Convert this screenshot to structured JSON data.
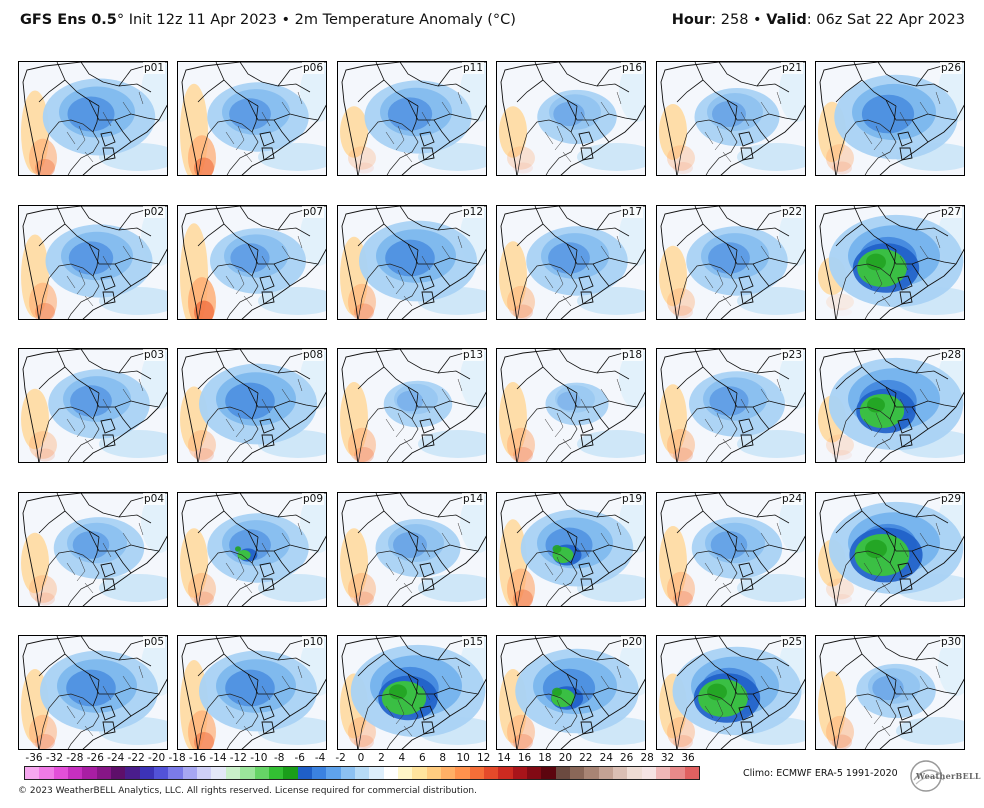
{
  "header": {
    "model": "GFS Ens 0.5",
    "degree": "°",
    "init": " Init 12z 11 Apr 2023 • 2m Temperature Anomaly (°C)",
    "hour_label": "Hour",
    "hour_value": ": 258 • ",
    "valid_label": "Valid",
    "valid_value": ": 06z Sat 22 Apr 2023"
  },
  "panels": [
    {
      "id": "p01",
      "cold": 0.75,
      "warm": 0.7,
      "green": 0
    },
    {
      "id": "p06",
      "cold": 0.65,
      "warm": 0.85,
      "green": 0
    },
    {
      "id": "p11",
      "cold": 0.7,
      "warm": 0.35,
      "green": 0
    },
    {
      "id": "p16",
      "cold": 0.45,
      "warm": 0.35,
      "green": 0
    },
    {
      "id": "p21",
      "cold": 0.5,
      "warm": 0.4,
      "green": 0
    },
    {
      "id": "p26",
      "cold": 0.85,
      "warm": 0.45,
      "green": 0
    },
    {
      "id": "p02",
      "cold": 0.7,
      "warm": 0.7,
      "green": 0
    },
    {
      "id": "p07",
      "cold": 0.6,
      "warm": 0.95,
      "green": 0
    },
    {
      "id": "p12",
      "cold": 0.8,
      "warm": 0.65,
      "green": 0
    },
    {
      "id": "p17",
      "cold": 0.65,
      "warm": 0.55,
      "green": 0
    },
    {
      "id": "p22",
      "cold": 0.65,
      "warm": 0.45,
      "green": 0
    },
    {
      "id": "p27",
      "cold": 0.95,
      "warm": 0.2,
      "green": 0.8
    },
    {
      "id": "p03",
      "cold": 0.65,
      "warm": 0.45,
      "green": 0
    },
    {
      "id": "p08",
      "cold": 0.8,
      "warm": 0.5,
      "green": 0
    },
    {
      "id": "p13",
      "cold": 0.35,
      "warm": 0.6,
      "green": 0
    },
    {
      "id": "p18",
      "cold": 0.3,
      "warm": 0.6,
      "green": 0
    },
    {
      "id": "p23",
      "cold": 0.6,
      "warm": 0.55,
      "green": 0
    },
    {
      "id": "p28",
      "cold": 0.95,
      "warm": 0.3,
      "green": 0.7
    },
    {
      "id": "p04",
      "cold": 0.55,
      "warm": 0.45,
      "green": 0
    },
    {
      "id": "p09",
      "cold": 0.65,
      "warm": 0.55,
      "green": 0.1
    },
    {
      "id": "p14",
      "cold": 0.5,
      "warm": 0.55,
      "green": 0
    },
    {
      "id": "p19",
      "cold": 0.75,
      "warm": 0.75,
      "green": 0.25
    },
    {
      "id": "p24",
      "cold": 0.55,
      "warm": 0.6,
      "green": 0
    },
    {
      "id": "p29",
      "cold": 0.95,
      "warm": 0.3,
      "green": 0.9
    },
    {
      "id": "p05",
      "cold": 0.8,
      "warm": 0.6,
      "green": 0
    },
    {
      "id": "p10",
      "cold": 0.8,
      "warm": 0.8,
      "green": 0
    },
    {
      "id": "p15",
      "cold": 0.95,
      "warm": 0.5,
      "green": 0.7
    },
    {
      "id": "p20",
      "cold": 0.85,
      "warm": 0.6,
      "green": 0.3
    },
    {
      "id": "p25",
      "cold": 0.9,
      "warm": 0.5,
      "green": 0.8
    },
    {
      "id": "p30",
      "cold": 0.45,
      "warm": 0.55,
      "green": 0
    }
  ],
  "colorbar": {
    "labels": [
      "-36",
      "-32",
      "-28",
      "-26",
      "-24",
      "-22",
      "-20",
      "-18",
      "-16",
      "-14",
      "-12",
      "-10",
      "-8",
      "-6",
      "-4",
      "-2",
      "0",
      "2",
      "4",
      "6",
      "8",
      "10",
      "12",
      "14",
      "16",
      "18",
      "20",
      "22",
      "24",
      "26",
      "28",
      "32",
      "36"
    ],
    "colors": [
      "#f7a8f0",
      "#f07be6",
      "#e34fd8",
      "#c62fbf",
      "#a81ea3",
      "#861686",
      "#5e0f6a",
      "#4a1d8c",
      "#3c33b8",
      "#5252d8",
      "#7b7be8",
      "#a7a7f2",
      "#cfd0f7",
      "#e4e8f8",
      "#c9f0c9",
      "#9be59b",
      "#66d466",
      "#33bf33",
      "#1a9e1a",
      "#1f5fc8",
      "#3b82e0",
      "#5fa3ec",
      "#8cc1f2",
      "#b7dbf6",
      "#ddeefb",
      "#ffffff",
      "#fff6c8",
      "#ffe49e",
      "#ffcc80",
      "#ffb066",
      "#ff924d",
      "#f56e38",
      "#e44a2a",
      "#cc2a20",
      "#a8141a",
      "#820a14",
      "#5c050e",
      "#6b4a40",
      "#8a6758",
      "#a88474",
      "#c4a294",
      "#dbbfb4",
      "#efdcd4",
      "#f6e4e4",
      "#f0b8b8",
      "#e88a8a",
      "#e06060"
    ]
  },
  "climo": "Climo: ECMWF ERA-5 1991-2020",
  "copyright": "© 2023 WeatherBELL Analytics, LLC. All rights reserved. License required for commercial distribution.",
  "logo_text": "WeatherBELL"
}
